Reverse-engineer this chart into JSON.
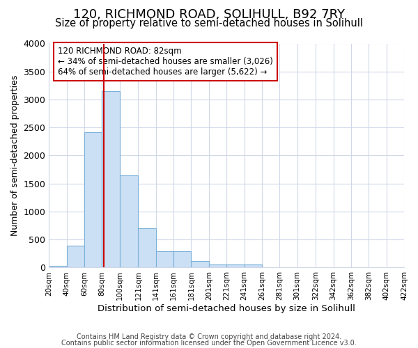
{
  "title": "120, RICHMOND ROAD, SOLIHULL, B92 7RY",
  "subtitle": "Size of property relative to semi-detached houses in Solihull",
  "xlabel": "Distribution of semi-detached houses by size in Solihull",
  "ylabel": "Number of semi-detached properties",
  "footer_line1": "Contains HM Land Registry data © Crown copyright and database right 2024.",
  "footer_line2": "Contains public sector information licensed under the Open Government Licence v3.0.",
  "annotation_line1": "120 RICHMOND ROAD: 82sqm",
  "annotation_line2": "← 34% of semi-detached houses are smaller (3,026)",
  "annotation_line3": "64% of semi-detached houses are larger (5,622) →",
  "property_size": 82,
  "bin_edges": [
    20,
    40,
    60,
    80,
    100,
    121,
    141,
    161,
    181,
    201,
    221,
    241,
    261,
    281,
    301,
    322,
    342,
    362,
    382,
    402,
    422
  ],
  "bar_values": [
    35,
    390,
    2420,
    3150,
    1640,
    700,
    290,
    290,
    120,
    50,
    60,
    50,
    0,
    0,
    0,
    0,
    0,
    0,
    0,
    0
  ],
  "bar_color": "#cce0f5",
  "bar_edge_color": "#7ab0d8",
  "vline_color": "#cc0000",
  "vline_x": 82,
  "ylim": [
    0,
    4000
  ],
  "yticks": [
    0,
    500,
    1000,
    1500,
    2000,
    2500,
    3000,
    3500,
    4000
  ],
  "grid_color": "#d0d8e8",
  "bg_color": "#ffffff",
  "annotation_box_color": "#cc0000",
  "title_fontsize": 13,
  "subtitle_fontsize": 10.5
}
